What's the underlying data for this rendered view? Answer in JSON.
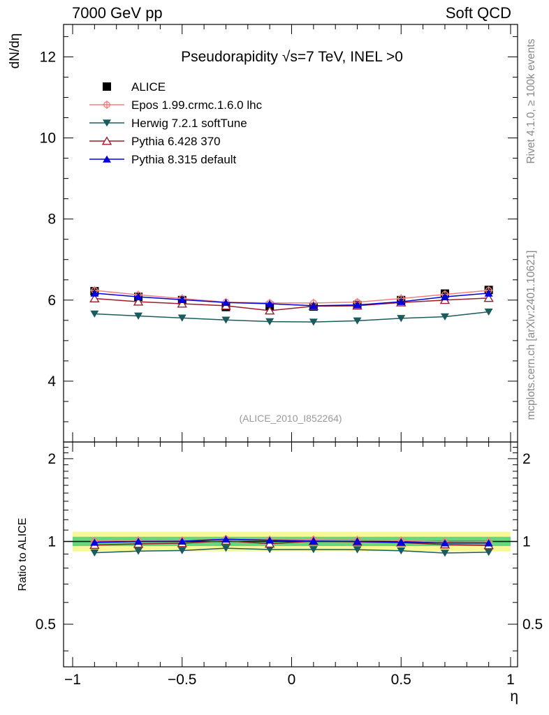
{
  "header": {
    "left": "7000 GeV pp",
    "right": "Soft QCD"
  },
  "side_text": {
    "rivet": "Rivet 4.1.0, ≥ 100k events",
    "mcplots": "mcplots.cern.ch [arXiv:2401.10621]"
  },
  "chart_data": {
    "type": "line",
    "title": "Pseudorapidity √s=7 TeV, INEL >0",
    "watermark": "(ALICE_2010_I852264)",
    "xlabel": "η",
    "ylabel": "dN/dη",
    "ratio_ylabel": "Ratio to ALICE",
    "xlim": [
      -1.0,
      1.0
    ],
    "ylim": [
      2.5,
      12.8
    ],
    "ratio_ylim": [
      0.35,
      2.3
    ],
    "x_ticks": [
      "−1",
      "−0.5",
      "0",
      "0.5",
      "1"
    ],
    "y_ticks": [
      "4",
      "6",
      "8",
      "10",
      "12"
    ],
    "ratio_y_ticks": [
      "0.5",
      "1",
      "2"
    ],
    "x": [
      -0.9,
      -0.7,
      -0.5,
      -0.3,
      -0.1,
      0.1,
      0.3,
      0.5,
      0.7,
      0.9
    ],
    "reference": {
      "name": "ALICE",
      "color": "#000000",
      "values": [
        6.22,
        6.08,
        6.0,
        5.83,
        5.85,
        5.84,
        5.88,
        6.0,
        6.16,
        6.25
      ]
    },
    "series": [
      {
        "name": "Epos 1.99.crmc.1.6.0 lhc",
        "color": "#f08080",
        "marker": "cross",
        "values": [
          6.24,
          6.13,
          6.04,
          5.95,
          5.93,
          5.93,
          5.95,
          6.04,
          6.14,
          6.24
        ]
      },
      {
        "name": "Herwig 7.2.1 softTune",
        "color": "#1a5c5e",
        "marker": "tri-down",
        "values": [
          5.66,
          5.61,
          5.56,
          5.51,
          5.47,
          5.46,
          5.49,
          5.55,
          5.59,
          5.71
        ]
      },
      {
        "name": "Pythia 6.428 370",
        "color": "#9b1c2a",
        "marker": "tri-up-open",
        "values": [
          6.04,
          5.96,
          5.91,
          5.86,
          5.74,
          5.85,
          5.86,
          5.94,
          6.0,
          6.05
        ]
      },
      {
        "name": "Pythia 8.315 default",
        "color": "#0000dd",
        "marker": "tri-up",
        "values": [
          6.17,
          6.08,
          6.01,
          5.94,
          5.91,
          5.86,
          5.88,
          5.96,
          6.08,
          6.17
        ]
      }
    ],
    "band_colors": {
      "inner": "#4dd17a",
      "outer": "#f5f571"
    }
  }
}
